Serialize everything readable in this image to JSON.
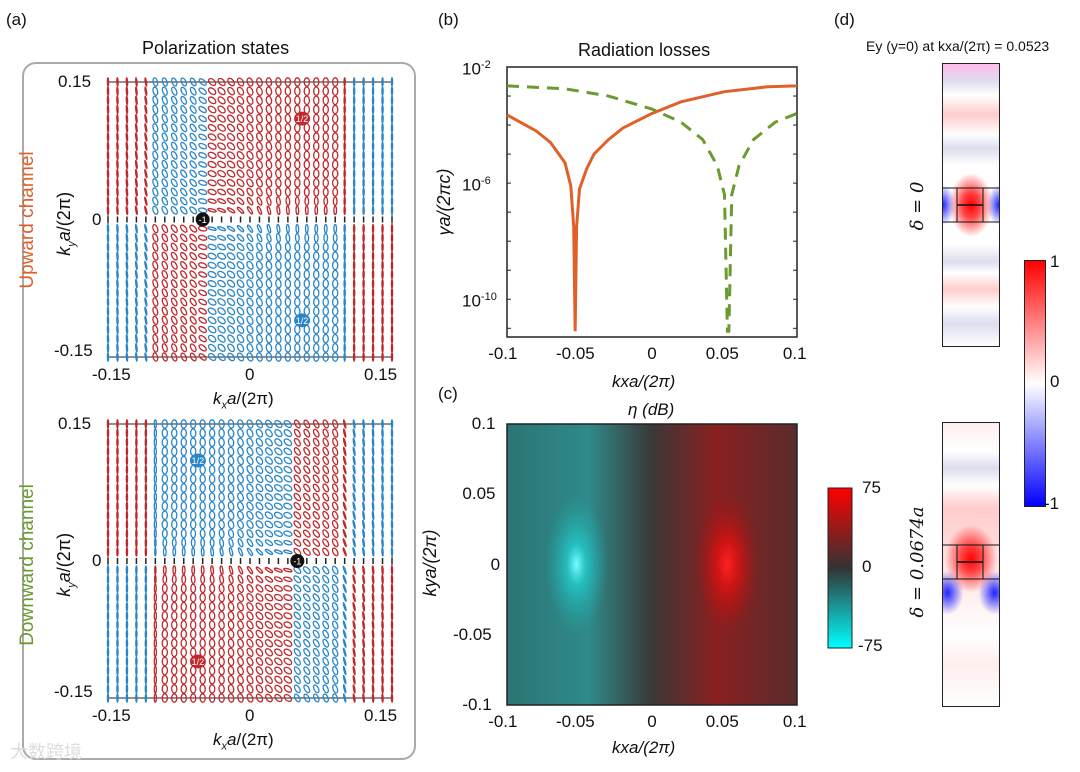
{
  "panel_labels": {
    "a": "(a)",
    "b": "(b)",
    "c": "(c)",
    "d": "(d)"
  },
  "panel_a": {
    "title": "Polarization states",
    "upper_channel_label": "Upward channel",
    "lower_channel_label": "Downward channel",
    "channel_colors": {
      "upward": "#e0602a",
      "downward": "#6a9a30"
    },
    "xlabel": "kxa/(2π)",
    "ylabel": "kya/(2π)",
    "xticks": [
      "-0.15",
      "0",
      "0.15"
    ],
    "yticks": [
      "0.15",
      "0",
      "-0.15"
    ],
    "upper_badges": {
      "red_half": "1/2",
      "blue_half": "1/2",
      "center": "-1"
    },
    "lower_badges": {
      "red_half": "1/2",
      "blue_half": "1/2",
      "center": "-1"
    },
    "colors": {
      "red": "#c0282c",
      "blue": "#2a86c8"
    }
  },
  "watermark": "大数跨境",
  "chart_data": [
    {
      "type": "line",
      "title": "Radiation losses",
      "xlabel": "kxa/(2π)",
      "ylabel": "γa/(2πc)",
      "xlim": [
        -0.1,
        0.1
      ],
      "ylog10lim": [
        -11.3,
        -2
      ],
      "xticks": [
        "-0.1",
        "-0.05",
        "0",
        "0.05",
        "0.1"
      ],
      "yticks": [
        {
          "label_base": "10",
          "exp": "-2",
          "log": -2
        },
        {
          "label_base": "10",
          "exp": "-6",
          "log": -6
        },
        {
          "label_base": "10",
          "exp": "-10",
          "log": -10
        }
      ],
      "series": [
        {
          "name": "upward",
          "style": "solid",
          "color": "#e0602a",
          "x": [
            -0.1,
            -0.08,
            -0.07,
            -0.06,
            -0.056,
            -0.054,
            -0.053,
            -0.052,
            -0.05,
            -0.045,
            -0.04,
            -0.03,
            -0.02,
            0,
            0.02,
            0.05,
            0.08,
            0.1
          ],
          "log10_y": [
            -3.65,
            -4.2,
            -4.6,
            -5.3,
            -6.1,
            -7.5,
            -11.1,
            -7.5,
            -6.2,
            -5.5,
            -5.0,
            -4.5,
            -4.1,
            -3.6,
            -3.2,
            -2.85,
            -2.68,
            -2.65
          ]
        },
        {
          "name": "downward",
          "style": "dashed",
          "color": "#6a9a30",
          "x": [
            -0.1,
            -0.06,
            -0.03,
            0,
            0.02,
            0.035,
            0.045,
            0.05,
            0.052,
            0.053,
            0.055,
            0.06,
            0.07,
            0.085,
            0.1
          ],
          "log10_y": [
            -2.65,
            -2.75,
            -3.0,
            -3.45,
            -3.9,
            -4.5,
            -5.4,
            -6.4,
            -11.1,
            -11.1,
            -6.4,
            -5.4,
            -4.5,
            -3.9,
            -3.6
          ]
        }
      ]
    },
    {
      "type": "heatmap",
      "title": "η (dB)",
      "xlabel": "kxa/(2π)",
      "ylabel": "kya/(2π)",
      "xlim": [
        -0.1,
        0.1
      ],
      "ylim": [
        -0.1,
        0.1
      ],
      "xticks": [
        "-0.1",
        "-0.05",
        "0",
        "0.05",
        "0.1"
      ],
      "yticks": [
        "0.1",
        "0.05",
        "0",
        "-0.05",
        "-0.1"
      ],
      "colorbar": {
        "min": -75,
        "max": 75,
        "ticks": [
          "75",
          "0",
          "-75"
        ],
        "colors": [
          "#00ffff",
          "#333333",
          "#ff0000"
        ]
      },
      "extrema": [
        {
          "kx": -0.052,
          "ky": 0,
          "value": -75
        },
        {
          "kx": 0.052,
          "ky": 0,
          "value": 75
        }
      ]
    },
    {
      "type": "heatmap",
      "title": "Ey (y=0) at kxa/(2π) = 0.0523",
      "rows": [
        {
          "label": "δ = 0"
        },
        {
          "label": "δ = 0.0674a"
        }
      ],
      "colorbar": {
        "min": -1,
        "max": 1,
        "ticks": [
          "1",
          "0",
          "-1"
        ],
        "colors": [
          "#0000ff",
          "#ffffff",
          "#ff0000"
        ]
      }
    }
  ]
}
